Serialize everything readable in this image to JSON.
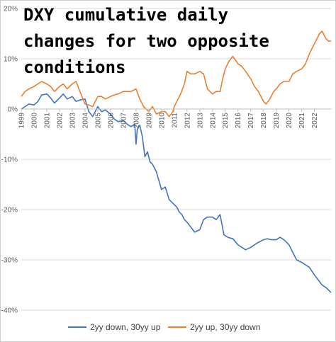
{
  "chart_data": {
    "type": "line",
    "title_lines": [
      "DXY cumulative daily",
      "changes for two opposite",
      "conditions"
    ],
    "ylim": [
      -40,
      20
    ],
    "yticks": [
      20,
      10,
      0,
      -10,
      -20,
      -30,
      -40
    ],
    "ytick_labels": [
      "20%",
      "10%",
      "0%",
      "-10%",
      "-20%",
      "-30%",
      "-40%"
    ],
    "xlim": [
      1999,
      2023.3
    ],
    "xticks": [
      1999,
      2000,
      2001,
      2002,
      2003,
      2004,
      2005,
      2006,
      2007,
      2008,
      2009,
      2010,
      2011,
      2012,
      2013,
      2014,
      2015,
      2016,
      2017,
      2018,
      2019,
      2020,
      2021,
      2022
    ],
    "xtick_labels": [
      "1999",
      "2000",
      "2001",
      "2002",
      "2003",
      "2004",
      "2005",
      "2006",
      "2007",
      "2008",
      "2009",
      "2010",
      "2011",
      "2012",
      "2013",
      "2014",
      "2015",
      "2016",
      "2017",
      "2018",
      "2019",
      "2020",
      "2021",
      "2022"
    ],
    "grid": "horizontal",
    "legend_position": "bottom",
    "series": [
      {
        "name": "2yy down, 30yy up",
        "color": "#4472C4",
        "x": [
          1999.0,
          1999.3,
          1999.6,
          2000.0,
          2000.3,
          2000.6,
          2001.0,
          2001.3,
          2001.6,
          2002.0,
          2002.3,
          2002.6,
          2003.0,
          2003.3,
          2003.6,
          2004.0,
          2004.3,
          2004.6,
          2005.0,
          2005.3,
          2005.6,
          2006.0,
          2006.3,
          2006.6,
          2007.0,
          2007.3,
          2007.6,
          2007.9,
          2008.0,
          2008.1,
          2008.3,
          2008.5,
          2008.7,
          2008.9,
          2009.1,
          2009.3,
          2009.6,
          2010.0,
          2010.3,
          2010.6,
          2011.0,
          2011.2,
          2011.4,
          2011.6,
          2011.8,
          2012.0,
          2012.3,
          2012.6,
          2013.0,
          2013.3,
          2013.6,
          2014.0,
          2014.3,
          2014.6,
          2014.9,
          2015.2,
          2015.6,
          2016.0,
          2016.3,
          2016.6,
          2017.0,
          2017.3,
          2017.6,
          2018.0,
          2018.3,
          2018.6,
          2019.0,
          2019.3,
          2019.6,
          2020.0,
          2020.3,
          2020.6,
          2021.0,
          2021.3,
          2021.6,
          2022.0,
          2022.3,
          2022.6,
          2022.9,
          2023.1,
          2023.3
        ],
        "values": [
          0.0,
          0.5,
          1.0,
          0.8,
          1.5,
          2.8,
          3.0,
          2.2,
          1.2,
          2.2,
          3.0,
          2.0,
          2.5,
          1.5,
          1.8,
          2.0,
          -0.5,
          -1.5,
          0.5,
          -0.5,
          -0.2,
          -1.0,
          -2.0,
          -2.5,
          -2.3,
          -3.0,
          -3.5,
          -3.0,
          -7.0,
          -4.0,
          -3.2,
          -5.5,
          -9.5,
          -8.5,
          -10.5,
          -11.0,
          -12.5,
          -16.0,
          -15.5,
          -18.0,
          -19.0,
          -19.5,
          -20.5,
          -21.0,
          -22.0,
          -22.5,
          -23.5,
          -24.5,
          -24.0,
          -22.0,
          -21.5,
          -21.5,
          -22.0,
          -21.0,
          -25.0,
          -25.5,
          -25.8,
          -27.0,
          -27.5,
          -28.0,
          -27.5,
          -27.0,
          -26.5,
          -26.0,
          -25.8,
          -26.0,
          -26.0,
          -25.5,
          -26.0,
          -27.0,
          -28.5,
          -30.0,
          -30.5,
          -31.0,
          -31.5,
          -33.0,
          -34.0,
          -35.0,
          -35.5,
          -36.0,
          -36.5
        ]
      },
      {
        "name": "2yy up, 30yy down",
        "color": "#ED7D31",
        "x": [
          1999.0,
          1999.3,
          1999.6,
          2000.0,
          2000.3,
          2000.6,
          2001.0,
          2001.3,
          2001.6,
          2002.0,
          2002.3,
          2002.6,
          2003.0,
          2003.3,
          2003.6,
          2004.0,
          2004.3,
          2004.6,
          2005.0,
          2005.3,
          2005.6,
          2006.0,
          2006.3,
          2006.6,
          2007.0,
          2007.3,
          2007.6,
          2008.0,
          2008.3,
          2008.6,
          2009.0,
          2009.3,
          2009.6,
          2010.0,
          2010.3,
          2010.6,
          2010.9,
          2011.0,
          2011.2,
          2011.5,
          2011.8,
          2012.0,
          2012.3,
          2012.6,
          2013.0,
          2013.3,
          2013.6,
          2014.0,
          2014.3,
          2014.6,
          2014.8,
          2015.0,
          2015.3,
          2015.6,
          2016.0,
          2016.3,
          2016.6,
          2017.0,
          2017.3,
          2017.6,
          2018.0,
          2018.2,
          2018.5,
          2018.8,
          2019.0,
          2019.3,
          2019.6,
          2020.0,
          2020.3,
          2020.6,
          2021.0,
          2021.3,
          2021.6,
          2022.0,
          2022.2,
          2022.4,
          2022.6,
          2022.9,
          2023.1,
          2023.3
        ],
        "values": [
          2.5,
          3.5,
          4.0,
          4.5,
          5.0,
          5.5,
          5.0,
          4.5,
          3.5,
          4.5,
          5.0,
          4.0,
          5.0,
          5.5,
          3.5,
          1.0,
          0.8,
          0.5,
          2.5,
          2.5,
          2.0,
          2.5,
          2.8,
          3.0,
          3.5,
          3.5,
          3.5,
          4.0,
          2.0,
          0.5,
          -0.5,
          0.5,
          -1.0,
          -0.5,
          -0.5,
          -1.5,
          -0.5,
          0.5,
          1.5,
          3.0,
          5.0,
          7.5,
          7.0,
          7.0,
          7.5,
          7.0,
          4.0,
          3.0,
          3.5,
          3.5,
          6.0,
          8.0,
          9.5,
          10.5,
          9.0,
          8.5,
          7.5,
          6.0,
          4.5,
          3.5,
          1.5,
          1.0,
          2.0,
          3.5,
          4.0,
          5.0,
          5.5,
          5.5,
          7.0,
          7.5,
          8.0,
          9.0,
          11.0,
          13.0,
          14.0,
          15.0,
          15.5,
          14.0,
          13.5,
          13.5
        ]
      }
    ]
  }
}
